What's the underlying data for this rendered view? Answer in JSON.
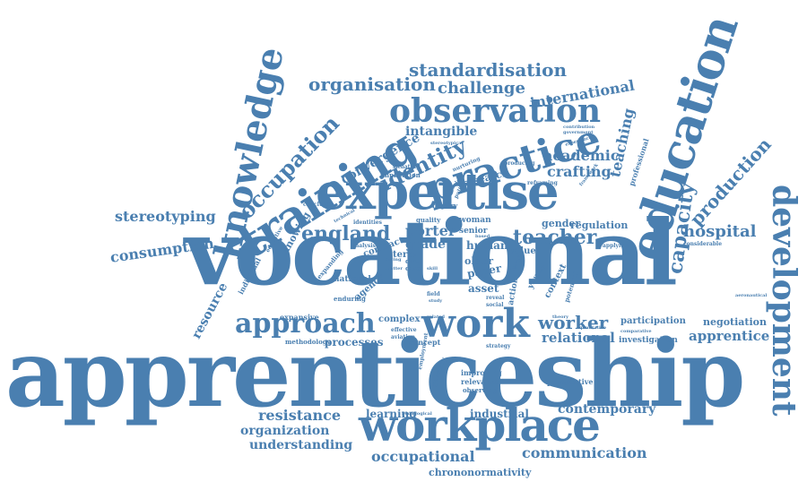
{
  "accent_color": "#4a7fb0",
  "words": [
    {
      "text": "apprenticeship"
    },
    {
      "text": "vocational"
    },
    {
      "text": "expertise"
    },
    {
      "text": "workplace"
    },
    {
      "text": "education"
    },
    {
      "text": "knowledge"
    },
    {
      "text": "training"
    },
    {
      "text": "development"
    },
    {
      "text": "practice"
    },
    {
      "text": "observation"
    },
    {
      "text": "work"
    },
    {
      "text": "approach"
    },
    {
      "text": "occupation"
    },
    {
      "text": "standardisation"
    },
    {
      "text": "organisation"
    },
    {
      "text": "challenge"
    },
    {
      "text": "international"
    },
    {
      "text": "identity"
    },
    {
      "text": "intangible"
    },
    {
      "text": "convergence"
    },
    {
      "text": "production"
    },
    {
      "text": "capacity"
    },
    {
      "text": "hospital"
    },
    {
      "text": "teacher"
    },
    {
      "text": "england"
    },
    {
      "text": "stereotyping"
    },
    {
      "text": "consumption"
    },
    {
      "text": "resource"
    },
    {
      "text": "academic"
    },
    {
      "text": "crafting"
    },
    {
      "text": "teaching"
    },
    {
      "text": "research"
    },
    {
      "text": "worker"
    },
    {
      "text": "relational"
    },
    {
      "text": "apprentice"
    },
    {
      "text": "negotiation"
    },
    {
      "text": "investigation"
    },
    {
      "text": "participation"
    },
    {
      "text": "resistance"
    },
    {
      "text": "organization"
    },
    {
      "text": "understanding"
    },
    {
      "text": "occupational"
    },
    {
      "text": "communication"
    },
    {
      "text": "contemporary"
    },
    {
      "text": "chrononormativity"
    },
    {
      "text": "learning"
    },
    {
      "text": "industrial"
    },
    {
      "text": "processes"
    },
    {
      "text": "complex"
    },
    {
      "text": "expansive"
    },
    {
      "text": "methodology"
    },
    {
      "text": "porter"
    },
    {
      "text": "grade"
    },
    {
      "text": "human"
    },
    {
      "text": "gender"
    },
    {
      "text": "regulation"
    },
    {
      "text": "contract"
    },
    {
      "text": "national"
    },
    {
      "text": "agency"
    },
    {
      "text": "knowing"
    },
    {
      "text": "individual"
    },
    {
      "text": "expanding"
    },
    {
      "text": "enduring"
    },
    {
      "text": "professional"
    },
    {
      "text": "perspective"
    },
    {
      "text": "improving"
    },
    {
      "text": "relevance"
    },
    {
      "text": "observing"
    },
    {
      "text": "concept"
    },
    {
      "text": "aviation"
    },
    {
      "text": "effective"
    },
    {
      "text": "asset"
    },
    {
      "text": "paper"
    },
    {
      "text": "older"
    },
    {
      "text": "dirty"
    },
    {
      "text": "care"
    },
    {
      "text": "woman"
    },
    {
      "text": "senior"
    },
    {
      "text": "quality"
    },
    {
      "text": "inquiry"
    },
    {
      "text": "value"
    },
    {
      "text": "young"
    },
    {
      "text": "context"
    },
    {
      "text": "action"
    },
    {
      "text": "potential"
    },
    {
      "text": "considerable"
    },
    {
      "text": "applying"
    },
    {
      "text": "qualitative"
    },
    {
      "text": "comparative"
    },
    {
      "text": "theory"
    },
    {
      "text": "society"
    },
    {
      "text": "policy"
    },
    {
      "text": "implication"
    },
    {
      "text": "situating"
    },
    {
      "text": "conclude"
    },
    {
      "text": "identities"
    },
    {
      "text": "analysis"
    },
    {
      "text": "technical"
    },
    {
      "text": "educative"
    },
    {
      "text": "stereotypical"
    },
    {
      "text": "producing"
    },
    {
      "text": "nurturing"
    },
    {
      "text": "reframing"
    },
    {
      "text": "framework"
    },
    {
      "text": "contribution"
    },
    {
      "text": "government"
    },
    {
      "text": "experience"
    },
    {
      "text": "term"
    },
    {
      "text": "field"
    },
    {
      "text": "study"
    },
    {
      "text": "social"
    },
    {
      "text": "strategy"
    },
    {
      "text": "employment"
    },
    {
      "text": "germany"
    },
    {
      "text": "pedagogical"
    },
    {
      "text": "related"
    },
    {
      "text": "reveal"
    },
    {
      "text": "facing"
    },
    {
      "text": "matter"
    },
    {
      "text": "skill"
    },
    {
      "text": "based"
    },
    {
      "text": "level"
    },
    {
      "text": "aeronautical"
    }
  ]
}
